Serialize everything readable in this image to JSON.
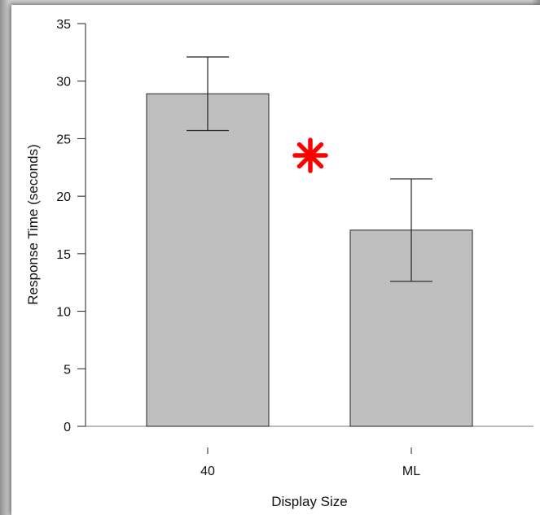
{
  "chart_data": {
    "type": "bar",
    "categories": [
      "40",
      "ML"
    ],
    "values": [
      28.9,
      17.05
    ],
    "error_bars": [
      {
        "low": 25.7,
        "high": 32.1
      },
      {
        "low": 12.6,
        "high": 21.5
      }
    ],
    "xlabel": "Display Size",
    "ylabel": "Response Time (seconds)",
    "ylim": [
      0,
      35
    ],
    "yticks": [
      0,
      5,
      10,
      15,
      20,
      25,
      30,
      35
    ],
    "grid": false,
    "bar_color": "#bfbfbf",
    "annotation": {
      "text": "*",
      "color": "#ff0000",
      "meaning": "significance-marker"
    }
  }
}
